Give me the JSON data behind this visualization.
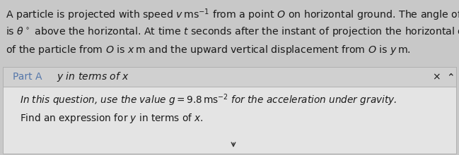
{
  "bg_color": "#c8c8c8",
  "header_bg": "#c8c8c8",
  "part_bar_color": "#d8d8d8",
  "body_bg": "#e8e8e8",
  "header_line1": "A particle is projected with speed $v\\,\\mathrm{ms}^{-1}$ from a point $O$ on horizontal ground. The angle of projection",
  "header_line2": "is $\\theta^\\circ$ above the horizontal. At time $t$ seconds after the instant of projection the horizontal displacement",
  "header_line3": "of the particle from $O$ is $x\\,\\mathrm{m}$ and the upward vertical displacement from $O$ is $y\\,\\mathrm{m}$.",
  "part_label": "Part A",
  "part_title": "$y$ in terms of $x$",
  "close_symbol": "×",
  "caret_symbol": "⌃",
  "body_line1": "In this question, use the value $g = 9.8\\,\\mathrm{ms}^{-2}$ for the acceleration under gravity.",
  "body_line2": "Find an expression for $y$ in terms of $x$.",
  "font_size_header": 10.2,
  "font_size_part": 10.0,
  "font_size_body": 9.8,
  "text_color": "#1a1a1a",
  "part_label_color": "#5577aa",
  "body_italic_color": "#1a1a1a"
}
